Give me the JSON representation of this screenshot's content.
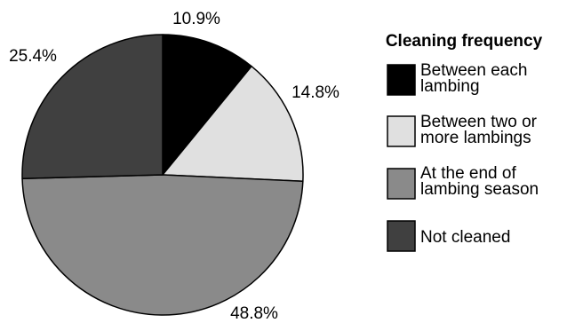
{
  "chart_data": {
    "type": "pie",
    "title": "",
    "legend_title": "Cleaning frequency",
    "legend_position": "right",
    "start_angle_deg": 0,
    "direction": "clockwise",
    "slices": [
      {
        "name": "Between each lambing",
        "legend_lines": [
          "Between each",
          "lambing"
        ],
        "value": 10.9,
        "label": "10.9%",
        "color": "#000000"
      },
      {
        "name": "Between two or more lambings",
        "legend_lines": [
          "Between two or",
          "more lambings"
        ],
        "value": 14.8,
        "label": "14.8%",
        "color": "#e0e0e0"
      },
      {
        "name": "At the end of lambing season",
        "legend_lines": [
          "At the end of",
          "lambing season"
        ],
        "value": 48.8,
        "label": "48.8%",
        "color": "#8a8a8a"
      },
      {
        "name": "Not cleaned",
        "legend_lines": [
          "Not cleaned"
        ],
        "value": 25.4,
        "label": "25.4%",
        "color": "#404040"
      }
    ]
  }
}
